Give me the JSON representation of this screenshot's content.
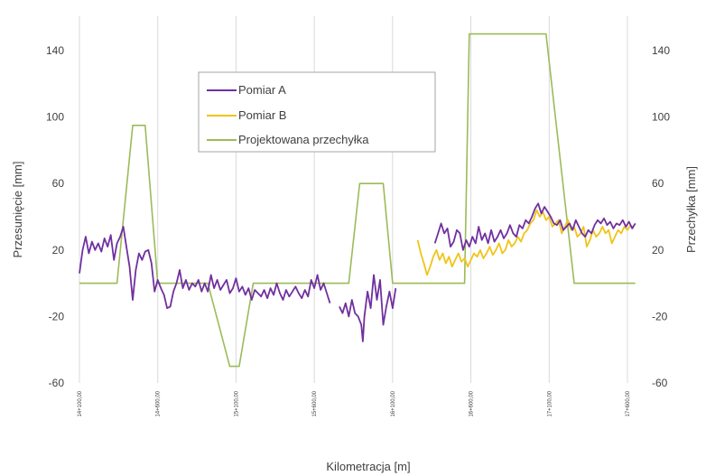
{
  "chart_data": {
    "type": "line",
    "xlabel": "Kilometracja [m]",
    "ylabel_left": "Przesunięcie [mm]",
    "ylabel_right": "Przechyłka [mm]",
    "ylim_left": [
      -60,
      160
    ],
    "ylim_right": [
      -60,
      160
    ],
    "yticks_left": [
      "140",
      "100",
      "60",
      "20",
      "-20",
      "-60"
    ],
    "yticks_right": [
      "140",
      "100",
      "60",
      "20",
      "-20",
      "-60"
    ],
    "xlim": [
      14100,
      17650
    ],
    "xticks": [
      "14+100,00",
      "14+600,00",
      "15+100,00",
      "15+600,00",
      "16+100,00",
      "16+600,00",
      "17+100,00",
      "17+600,00"
    ],
    "xtick_values": [
      14100,
      14600,
      15100,
      15600,
      16100,
      16600,
      17100,
      17600
    ],
    "grid": "vertical",
    "legend_position": "upper-left-inside",
    "series": [
      {
        "name": "Pomiar A",
        "color": "#7030a0",
        "segments": [
          [
            [
              14100,
              6
            ],
            [
              14120,
              20
            ],
            [
              14140,
              28
            ],
            [
              14160,
              18
            ],
            [
              14180,
              25
            ],
            [
              14200,
              20
            ],
            [
              14220,
              24
            ],
            [
              14240,
              19
            ],
            [
              14260,
              27
            ],
            [
              14280,
              22
            ],
            [
              14300,
              29
            ],
            [
              14320,
              14
            ],
            [
              14340,
              24
            ],
            [
              14360,
              28
            ],
            [
              14380,
              34
            ],
            [
              14400,
              22
            ],
            [
              14420,
              10
            ],
            [
              14440,
              -10
            ],
            [
              14460,
              8
            ],
            [
              14480,
              18
            ],
            [
              14500,
              14
            ],
            [
              14520,
              19
            ],
            [
              14540,
              20
            ],
            [
              14560,
              12
            ],
            [
              14580,
              -5
            ],
            [
              14600,
              2
            ],
            [
              14620,
              -3
            ],
            [
              14640,
              -7
            ],
            [
              14660,
              -15
            ],
            [
              14680,
              -14
            ],
            [
              14700,
              -5
            ],
            [
              14720,
              0
            ],
            [
              14740,
              8
            ],
            [
              14760,
              -3
            ],
            [
              14780,
              2
            ],
            [
              14800,
              -4
            ],
            [
              14820,
              0
            ],
            [
              14840,
              -2
            ],
            [
              14860,
              2
            ],
            [
              14880,
              -5
            ],
            [
              14900,
              0
            ],
            [
              14920,
              -5
            ],
            [
              14940,
              5
            ],
            [
              14960,
              -3
            ],
            [
              14980,
              2
            ],
            [
              15000,
              -4
            ],
            [
              15020,
              -1
            ],
            [
              15040,
              2
            ],
            [
              15060,
              -6
            ],
            [
              15080,
              -3
            ],
            [
              15100,
              3
            ],
            [
              15120,
              -5
            ],
            [
              15140,
              -2
            ],
            [
              15160,
              -7
            ],
            [
              15180,
              -3
            ],
            [
              15200,
              -10
            ],
            [
              15220,
              -4
            ],
            [
              15240,
              -6
            ],
            [
              15260,
              -8
            ],
            [
              15280,
              -4
            ],
            [
              15300,
              -9
            ],
            [
              15320,
              -3
            ],
            [
              15340,
              -7
            ],
            [
              15360,
              0
            ],
            [
              15380,
              -6
            ],
            [
              15400,
              -10
            ],
            [
              15420,
              -4
            ],
            [
              15440,
              -8
            ],
            [
              15460,
              -5
            ],
            [
              15480,
              -2
            ],
            [
              15500,
              -6
            ],
            [
              15520,
              -9
            ],
            [
              15540,
              -4
            ],
            [
              15560,
              -8
            ],
            [
              15580,
              2
            ],
            [
              15600,
              -3
            ],
            [
              15620,
              5
            ],
            [
              15640,
              -4
            ],
            [
              15660,
              0
            ],
            [
              15680,
              -6
            ],
            [
              15700,
              -12
            ]
          ],
          [
            [
              15760,
              -14
            ],
            [
              15780,
              -18
            ],
            [
              15800,
              -12
            ],
            [
              15820,
              -20
            ],
            [
              15840,
              -10
            ],
            [
              15860,
              -18
            ],
            [
              15880,
              -20
            ],
            [
              15900,
              -25
            ],
            [
              15910,
              -35
            ],
            [
              15920,
              -20
            ],
            [
              15940,
              -5
            ],
            [
              15960,
              -15
            ],
            [
              15980,
              5
            ],
            [
              16000,
              -10
            ],
            [
              16020,
              2
            ],
            [
              16040,
              -25
            ],
            [
              16060,
              -14
            ],
            [
              16080,
              -5
            ],
            [
              16100,
              -15
            ],
            [
              16120,
              -3
            ]
          ],
          [
            [
              16370,
              24
            ],
            [
              16390,
              30
            ],
            [
              16410,
              36
            ],
            [
              16430,
              30
            ],
            [
              16450,
              33
            ],
            [
              16470,
              22
            ],
            [
              16490,
              25
            ],
            [
              16510,
              32
            ],
            [
              16530,
              30
            ],
            [
              16550,
              20
            ],
            [
              16570,
              26
            ],
            [
              16590,
              22
            ],
            [
              16610,
              28
            ],
            [
              16630,
              24
            ],
            [
              16650,
              34
            ],
            [
              16670,
              26
            ],
            [
              16690,
              30
            ],
            [
              16710,
              24
            ],
            [
              16730,
              32
            ],
            [
              16750,
              25
            ],
            [
              16770,
              28
            ],
            [
              16790,
              32
            ],
            [
              16810,
              27
            ],
            [
              16830,
              30
            ],
            [
              16850,
              35
            ],
            [
              16870,
              30
            ],
            [
              16890,
              28
            ],
            [
              16910,
              35
            ],
            [
              16930,
              33
            ],
            [
              16950,
              38
            ],
            [
              16970,
              36
            ],
            [
              16990,
              40
            ],
            [
              17010,
              45
            ],
            [
              17030,
              48
            ],
            [
              17050,
              42
            ],
            [
              17070,
              46
            ],
            [
              17090,
              43
            ],
            [
              17110,
              40
            ],
            [
              17130,
              36
            ],
            [
              17150,
              35
            ],
            [
              17170,
              38
            ],
            [
              17190,
              32
            ],
            [
              17210,
              34
            ],
            [
              17230,
              36
            ],
            [
              17250,
              32
            ],
            [
              17270,
              38
            ],
            [
              17290,
              34
            ],
            [
              17310,
              30
            ],
            [
              17330,
              28
            ],
            [
              17350,
              32
            ],
            [
              17370,
              30
            ],
            [
              17390,
              35
            ],
            [
              17410,
              38
            ],
            [
              17430,
              36
            ],
            [
              17450,
              39
            ],
            [
              17470,
              35
            ],
            [
              17490,
              37
            ],
            [
              17510,
              33
            ],
            [
              17530,
              36
            ],
            [
              17550,
              35
            ],
            [
              17570,
              38
            ],
            [
              17590,
              34
            ],
            [
              17610,
              37
            ],
            [
              17630,
              33
            ],
            [
              17650,
              36
            ]
          ]
        ]
      },
      {
        "name": "Pomiar B",
        "color": "#f0c419",
        "segments": [
          [
            [
              16260,
              26
            ],
            [
              16280,
              18
            ],
            [
              16300,
              12
            ],
            [
              16320,
              5
            ],
            [
              16340,
              10
            ],
            [
              16360,
              16
            ],
            [
              16380,
              20
            ],
            [
              16400,
              14
            ],
            [
              16420,
              18
            ],
            [
              16440,
              12
            ],
            [
              16460,
              16
            ],
            [
              16480,
              10
            ],
            [
              16500,
              14
            ],
            [
              16520,
              18
            ],
            [
              16540,
              13
            ],
            [
              16560,
              15
            ],
            [
              16580,
              10
            ],
            [
              16600,
              14
            ],
            [
              16620,
              18
            ],
            [
              16640,
              16
            ],
            [
              16660,
              20
            ],
            [
              16680,
              15
            ],
            [
              16700,
              18
            ],
            [
              16720,
              22
            ],
            [
              16740,
              17
            ],
            [
              16760,
              20
            ],
            [
              16780,
              24
            ],
            [
              16800,
              18
            ],
            [
              16820,
              20
            ],
            [
              16840,
              26
            ],
            [
              16860,
              22
            ],
            [
              16880,
              24
            ],
            [
              16900,
              28
            ],
            [
              16920,
              25
            ],
            [
              16940,
              30
            ],
            [
              16960,
              32
            ],
            [
              16980,
              36
            ],
            [
              17000,
              38
            ],
            [
              17020,
              44
            ],
            [
              17040,
              40
            ],
            [
              17060,
              43
            ],
            [
              17080,
              38
            ],
            [
              17100,
              40
            ],
            [
              17120,
              34
            ],
            [
              17140,
              36
            ],
            [
              17160,
              38
            ],
            [
              17180,
              30
            ],
            [
              17200,
              34
            ],
            [
              17220,
              38
            ],
            [
              17240,
              32
            ],
            [
              17260,
              34
            ],
            [
              17280,
              28
            ],
            [
              17300,
              30
            ],
            [
              17320,
              34
            ],
            [
              17340,
              22
            ],
            [
              17360,
              26
            ],
            [
              17380,
              32
            ],
            [
              17400,
              28
            ],
            [
              17420,
              30
            ],
            [
              17440,
              34
            ],
            [
              17460,
              30
            ],
            [
              17480,
              32
            ],
            [
              17500,
              24
            ],
            [
              17520,
              28
            ],
            [
              17540,
              32
            ],
            [
              17560,
              30
            ],
            [
              17580,
              34
            ],
            [
              17600,
              32
            ],
            [
              17620,
              35
            ],
            [
              17640,
              33
            ]
          ]
        ]
      },
      {
        "name": "Projektowana przechyłka",
        "color": "#9bbb59",
        "segments": [
          [
            [
              14100,
              0
            ],
            [
              14340,
              0
            ],
            [
              14440,
              95
            ],
            [
              14520,
              95
            ],
            [
              14600,
              0
            ],
            [
              14920,
              0
            ],
            [
              15060,
              -50
            ],
            [
              15120,
              -50
            ],
            [
              15210,
              0
            ],
            [
              15820,
              0
            ],
            [
              15890,
              60
            ],
            [
              16040,
              60
            ],
            [
              16100,
              0
            ],
            [
              16560,
              0
            ],
            [
              16590,
              150
            ],
            [
              17080,
              150
            ],
            [
              17260,
              0
            ],
            [
              17650,
              0
            ]
          ]
        ]
      }
    ]
  }
}
